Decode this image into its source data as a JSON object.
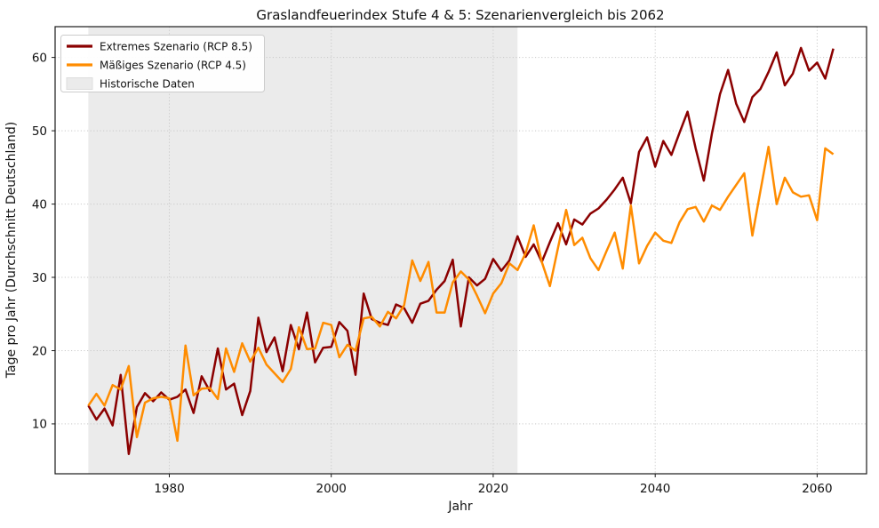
{
  "chart_data": {
    "type": "line",
    "title": "Graslandfeuerindex Stufe 4 & 5: Szenarienvergleich bis 2062",
    "xlabel": "Jahr",
    "ylabel": "Tage pro Jahr (Durchschnitt Deutschland)",
    "xlim": [
      1965.9,
      2066.1
    ],
    "ylim": [
      3.2,
      64.2
    ],
    "xticks": [
      1980,
      2000,
      2020,
      2040,
      2060
    ],
    "yticks": [
      10,
      20,
      30,
      40,
      50,
      60
    ],
    "grid": true,
    "legend_position": "upper-left",
    "historical_region": {
      "label": "Historische Daten",
      "x_start": 1970,
      "x_end": 2023,
      "color": "#ebebeb"
    },
    "x": [
      1970,
      1971,
      1972,
      1973,
      1974,
      1975,
      1976,
      1977,
      1978,
      1979,
      1980,
      1981,
      1982,
      1983,
      1984,
      1985,
      1986,
      1987,
      1988,
      1989,
      1990,
      1991,
      1992,
      1993,
      1994,
      1995,
      1996,
      1997,
      1998,
      1999,
      2000,
      2001,
      2002,
      2003,
      2004,
      2005,
      2006,
      2007,
      2008,
      2009,
      2010,
      2011,
      2012,
      2013,
      2014,
      2015,
      2016,
      2017,
      2018,
      2019,
      2020,
      2021,
      2022,
      2023,
      2024,
      2025,
      2026,
      2027,
      2028,
      2029,
      2030,
      2031,
      2032,
      2033,
      2034,
      2035,
      2036,
      2037,
      2038,
      2039,
      2040,
      2041,
      2042,
      2043,
      2044,
      2045,
      2046,
      2047,
      2048,
      2049,
      2050,
      2051,
      2052,
      2053,
      2054,
      2055,
      2056,
      2057,
      2058,
      2059,
      2060,
      2061,
      2062
    ],
    "series": [
      {
        "name": "Extremes Szenario (RCP 8.5)",
        "color": "#8B0000",
        "values": [
          12.5,
          10.6,
          12.1,
          9.8,
          16.7,
          5.9,
          12.3,
          14.2,
          13.1,
          14.3,
          13.3,
          13.7,
          14.7,
          11.5,
          16.5,
          14.5,
          20.3,
          14.7,
          15.5,
          11.2,
          14.5,
          24.5,
          19.8,
          21.8,
          17.2,
          23.5,
          20.2,
          25.2,
          18.4,
          20.4,
          20.5,
          23.9,
          22.7,
          16.7,
          27.8,
          24.3,
          23.8,
          23.5,
          26.3,
          25.8,
          23.8,
          26.4,
          26.8,
          28.3,
          29.5,
          32.4,
          23.3,
          30.0,
          28.9,
          29.8,
          32.5,
          30.9,
          32.3,
          35.6,
          32.8,
          34.5,
          32.1,
          34.8,
          37.4,
          34.5,
          37.9,
          37.2,
          38.7,
          39.4,
          40.6,
          42.0,
          43.6,
          40.1,
          47.1,
          49.1,
          45.1,
          48.6,
          46.7,
          49.7,
          52.6,
          47.6,
          43.2,
          49.6,
          55.0,
          58.3,
          53.7,
          51.2,
          54.6,
          55.7,
          58.0,
          60.7,
          56.2,
          57.8,
          61.3,
          58.2,
          59.3,
          57.1,
          61.2
        ]
      },
      {
        "name": "Mäßiges Szenario (RCP 4.5)",
        "color": "#FF8C00",
        "values": [
          12.5,
          14.1,
          12.5,
          15.3,
          14.7,
          17.9,
          8.2,
          12.9,
          13.5,
          13.7,
          13.5,
          7.7,
          20.7,
          13.9,
          14.8,
          14.9,
          13.4,
          20.3,
          17.1,
          21.0,
          18.5,
          20.4,
          18.1,
          16.9,
          15.7,
          17.5,
          23.2,
          20.2,
          20.3,
          23.8,
          23.5,
          19.1,
          20.8,
          20.0,
          24.4,
          24.6,
          23.3,
          25.3,
          24.4,
          26.2,
          32.3,
          29.5,
          32.1,
          25.2,
          25.2,
          29.3,
          30.8,
          29.7,
          27.5,
          25.1,
          27.8,
          29.2,
          31.9,
          31.0,
          33.3,
          37.1,
          32.1,
          28.8,
          34.0,
          39.2,
          34.4,
          35.4,
          32.6,
          31.0,
          33.6,
          36.1,
          31.2,
          39.8,
          31.9,
          34.3,
          36.1,
          35.0,
          34.7,
          37.5,
          39.3,
          39.6,
          37.6,
          39.8,
          39.2,
          41.0,
          42.6,
          44.2,
          35.7,
          41.8,
          47.8,
          40.0,
          43.6,
          41.6,
          41.0,
          41.2,
          37.8,
          47.6,
          46.8
        ]
      }
    ]
  }
}
